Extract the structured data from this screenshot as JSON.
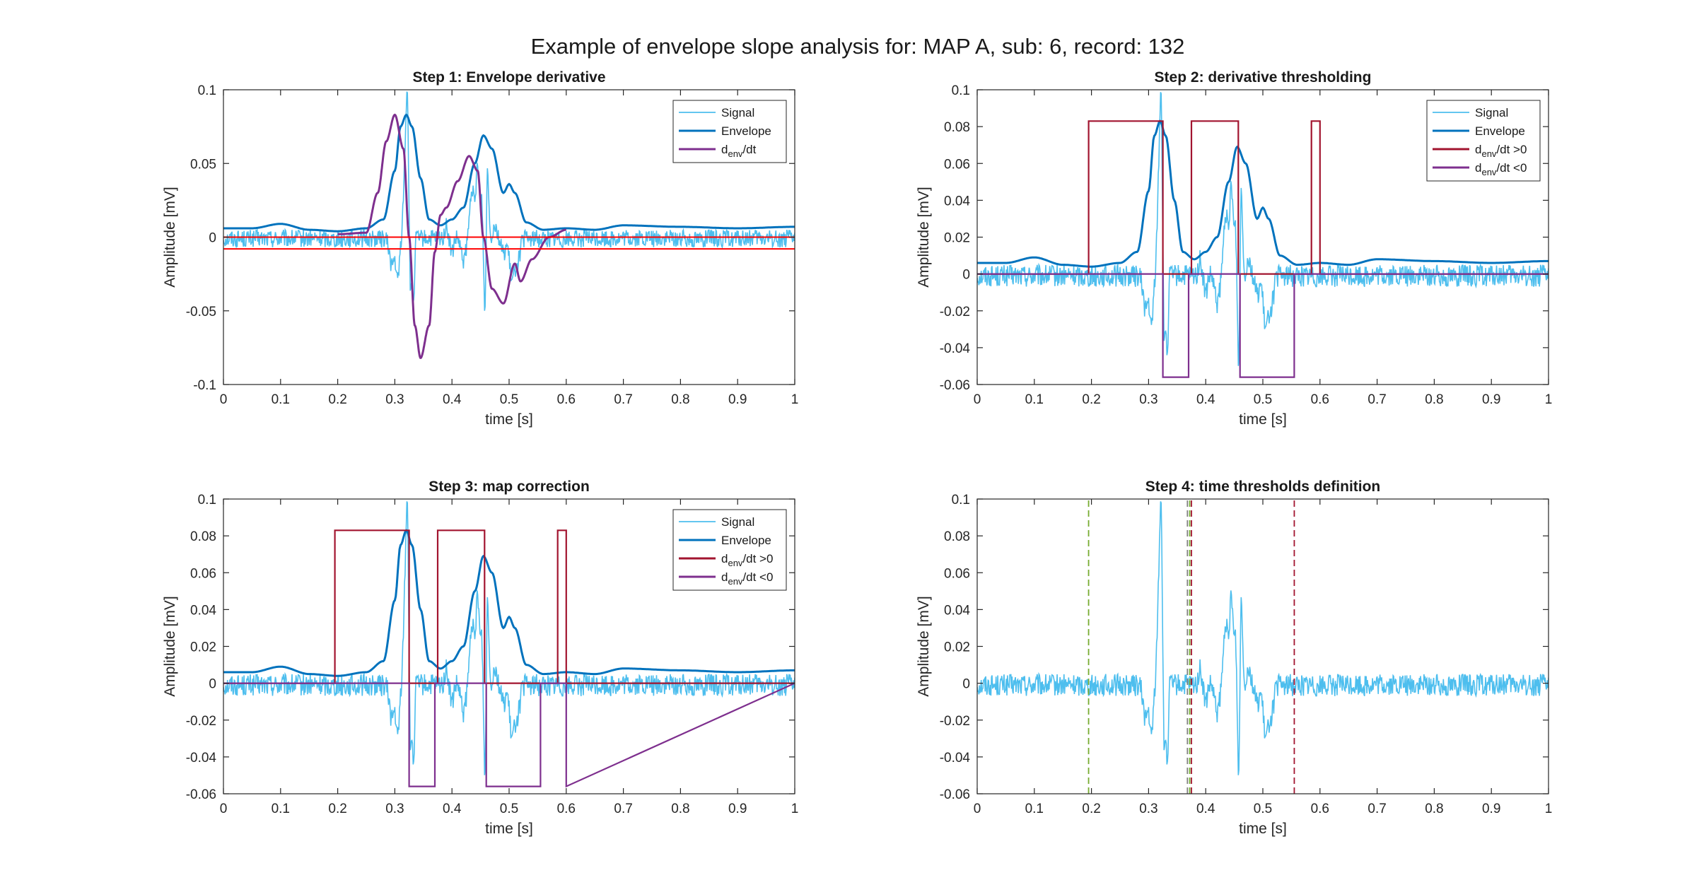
{
  "figure_title": "Example of envelope slope analysis for: MAP A, sub: 6, record: 132",
  "colors": {
    "signal": "#4DBEEE",
    "envelope": "#0072BD",
    "pos": "#A2142F",
    "neg": "#7E2F8E",
    "deriv": "#7E2F8E",
    "threshold": "#FF0000",
    "green_dash": "#77AC30",
    "red_dash": "#A2142F",
    "gray_dash": "#808080",
    "axis": "#262626"
  },
  "chart_data": [
    {
      "id": "step1",
      "type": "line",
      "title": "Step 1: Envelope derivative",
      "xlabel": "time [s]",
      "ylabel": "Amplitude [mV]",
      "xlim": [
        0,
        1
      ],
      "ylim": [
        -0.1,
        0.1
      ],
      "xticks": [
        0,
        0.1,
        0.2,
        0.3,
        0.4,
        0.5,
        0.6,
        0.7,
        0.8,
        0.9,
        1
      ],
      "xtick_labels": [
        "0",
        "0.1",
        "0.2",
        "0.3",
        "0.4",
        "0.5",
        "0.6",
        "0.7",
        "0.8",
        "0.9",
        "1"
      ],
      "yticks": [
        -0.1,
        -0.05,
        0,
        0.05,
        0.1
      ],
      "ytick_labels": [
        "-0.1",
        "-0.05",
        "0",
        "0.05",
        "0.1"
      ],
      "signal_offset": 0,
      "legend": [
        {
          "key": "signal",
          "label": "Signal",
          "sub": "",
          "rest": ""
        },
        {
          "key": "envelope",
          "label": "Envelope",
          "sub": "",
          "rest": ""
        },
        {
          "key": "deriv",
          "label": "d",
          "sub": "env",
          "rest": "/dt"
        }
      ],
      "series": [
        {
          "key": "signal",
          "kind": "signal"
        },
        {
          "key": "envelope",
          "kind": "envelope",
          "x": [
            0,
            0.05,
            0.1,
            0.15,
            0.2,
            0.25,
            0.28,
            0.3,
            0.31,
            0.32,
            0.33,
            0.345,
            0.36,
            0.38,
            0.4,
            0.42,
            0.44,
            0.455,
            0.47,
            0.49,
            0.5,
            0.51,
            0.53,
            0.56,
            0.6,
            0.65,
            0.7,
            0.8,
            0.9,
            1.0
          ],
          "y": [
            0.006,
            0.006,
            0.009,
            0.005,
            0.004,
            0.006,
            0.012,
            0.045,
            0.075,
            0.083,
            0.075,
            0.04,
            0.012,
            0.008,
            0.012,
            0.02,
            0.05,
            0.069,
            0.06,
            0.03,
            0.036,
            0.03,
            0.01,
            0.005,
            0.006,
            0.005,
            0.008,
            0.007,
            0.006,
            0.007
          ]
        },
        {
          "key": "deriv",
          "kind": "deriv",
          "x": [
            0.2,
            0.25,
            0.27,
            0.285,
            0.3,
            0.315,
            0.325,
            0.335,
            0.345,
            0.36,
            0.37,
            0.38,
            0.39,
            0.41,
            0.43,
            0.445,
            0.455,
            0.47,
            0.49,
            0.51,
            0.52,
            0.54,
            0.57,
            0.6
          ],
          "y": [
            0.002,
            0.003,
            0.03,
            0.065,
            0.083,
            0.06,
            0.0,
            -0.06,
            -0.082,
            -0.06,
            -0.01,
            0.015,
            0.02,
            0.038,
            0.055,
            0.045,
            0.0,
            -0.035,
            -0.045,
            -0.018,
            -0.03,
            -0.015,
            0.0,
            0.005
          ]
        },
        {
          "key": "threshold",
          "kind": "hline",
          "y": 0
        },
        {
          "key": "threshold",
          "kind": "hline",
          "y": -0.008
        }
      ]
    },
    {
      "id": "step2",
      "type": "line",
      "title": "Step 2: derivative thresholding",
      "xlabel": "time [s]",
      "ylabel": "Amplitude [mV]",
      "xlim": [
        0,
        1
      ],
      "ylim": [
        -0.06,
        0.1
      ],
      "xticks": [
        0,
        0.1,
        0.2,
        0.3,
        0.4,
        0.5,
        0.6,
        0.7,
        0.8,
        0.9,
        1
      ],
      "xtick_labels": [
        "0",
        "0.1",
        "0.2",
        "0.3",
        "0.4",
        "0.5",
        "0.6",
        "0.7",
        "0.8",
        "0.9",
        "1"
      ],
      "yticks": [
        -0.06,
        -0.04,
        -0.02,
        0,
        0.02,
        0.04,
        0.06,
        0.08,
        0.1
      ],
      "ytick_labels": [
        "-0.06",
        "-0.04",
        "-0.02",
        "0",
        "0.02",
        "0.04",
        "0.06",
        "0.08",
        "0.1"
      ],
      "signal_offset": 0,
      "legend": [
        {
          "key": "signal",
          "label": "Signal",
          "sub": "",
          "rest": ""
        },
        {
          "key": "envelope",
          "label": "Envelope",
          "sub": "",
          "rest": ""
        },
        {
          "key": "pos",
          "label": "d",
          "sub": "env",
          "rest": "/dt >0"
        },
        {
          "key": "neg",
          "label": "d",
          "sub": "env",
          "rest": "/dt <0"
        }
      ],
      "series": [
        {
          "key": "signal",
          "kind": "signal"
        },
        {
          "key": "envelope",
          "kind": "envelope",
          "x": [
            0,
            0.05,
            0.1,
            0.15,
            0.2,
            0.25,
            0.28,
            0.3,
            0.31,
            0.32,
            0.33,
            0.345,
            0.36,
            0.38,
            0.4,
            0.42,
            0.44,
            0.455,
            0.47,
            0.49,
            0.5,
            0.51,
            0.53,
            0.56,
            0.6,
            0.65,
            0.7,
            0.8,
            0.9,
            1.0
          ],
          "y": [
            0.006,
            0.006,
            0.009,
            0.005,
            0.004,
            0.006,
            0.012,
            0.045,
            0.075,
            0.083,
            0.075,
            0.04,
            0.012,
            0.008,
            0.012,
            0.02,
            0.05,
            0.069,
            0.06,
            0.03,
            0.036,
            0.03,
            0.01,
            0.005,
            0.006,
            0.005,
            0.008,
            0.007,
            0.006,
            0.007
          ]
        },
        {
          "key": "pos",
          "kind": "step",
          "x": [
            0,
            0.195,
            0.195,
            0.325,
            0.325,
            0.375,
            0.375,
            0.457,
            0.457,
            0.585,
            0.585,
            0.6,
            0.6,
            1.0
          ],
          "y": [
            0,
            0,
            0.083,
            0.083,
            0,
            0,
            0.083,
            0.083,
            0,
            0,
            0.083,
            0.083,
            0,
            0
          ]
        },
        {
          "key": "neg",
          "kind": "step",
          "x": [
            0,
            0.325,
            0.325,
            0.37,
            0.37,
            0.46,
            0.46,
            0.555,
            0.555,
            1.0
          ],
          "y": [
            0,
            0,
            -0.056,
            -0.056,
            0,
            0,
            -0.056,
            -0.056,
            0,
            0
          ]
        }
      ]
    },
    {
      "id": "step3",
      "type": "line",
      "title": "Step 3: map correction",
      "xlabel": "time [s]",
      "ylabel": "Amplitude [mV]",
      "xlim": [
        0,
        1
      ],
      "ylim": [
        -0.06,
        0.1
      ],
      "xticks": [
        0,
        0.1,
        0.2,
        0.3,
        0.4,
        0.5,
        0.6,
        0.7,
        0.8,
        0.9,
        1
      ],
      "xtick_labels": [
        "0",
        "0.1",
        "0.2",
        "0.3",
        "0.4",
        "0.5",
        "0.6",
        "0.7",
        "0.8",
        "0.9",
        "1"
      ],
      "yticks": [
        -0.06,
        -0.04,
        -0.02,
        0,
        0.02,
        0.04,
        0.06,
        0.08,
        0.1
      ],
      "ytick_labels": [
        "-0.06",
        "-0.04",
        "-0.02",
        "0",
        "0.02",
        "0.04",
        "0.06",
        "0.08",
        "0.1"
      ],
      "signal_offset": 0,
      "legend": [
        {
          "key": "signal",
          "label": "Signal",
          "sub": "",
          "rest": ""
        },
        {
          "key": "envelope",
          "label": "Envelope",
          "sub": "",
          "rest": ""
        },
        {
          "key": "pos",
          "label": "d",
          "sub": "env",
          "rest": "/dt >0"
        },
        {
          "key": "neg",
          "label": "d",
          "sub": "env",
          "rest": "/dt <0"
        }
      ],
      "series": [
        {
          "key": "signal",
          "kind": "signal"
        },
        {
          "key": "envelope",
          "kind": "envelope",
          "x": [
            0,
            0.05,
            0.1,
            0.15,
            0.2,
            0.25,
            0.28,
            0.3,
            0.31,
            0.32,
            0.33,
            0.345,
            0.36,
            0.38,
            0.4,
            0.42,
            0.44,
            0.455,
            0.47,
            0.49,
            0.5,
            0.51,
            0.53,
            0.56,
            0.6,
            0.65,
            0.7,
            0.8,
            0.9,
            1.0
          ],
          "y": [
            0.006,
            0.006,
            0.009,
            0.005,
            0.004,
            0.006,
            0.012,
            0.045,
            0.075,
            0.083,
            0.075,
            0.04,
            0.012,
            0.008,
            0.012,
            0.02,
            0.05,
            0.069,
            0.06,
            0.03,
            0.036,
            0.03,
            0.01,
            0.005,
            0.006,
            0.005,
            0.008,
            0.007,
            0.006,
            0.007
          ]
        },
        {
          "key": "pos",
          "kind": "step",
          "x": [
            0,
            0.195,
            0.195,
            0.325,
            0.325,
            0.375,
            0.375,
            0.457,
            0.457,
            0.585,
            0.585,
            0.6,
            0.6,
            1.0
          ],
          "y": [
            0,
            0,
            0.083,
            0.083,
            0,
            0,
            0.083,
            0.083,
            0,
            0,
            0.083,
            0.083,
            0,
            0
          ]
        },
        {
          "key": "neg",
          "kind": "step",
          "x": [
            0,
            0.325,
            0.325,
            0.37,
            0.37,
            0.46,
            0.46,
            0.555,
            0.555,
            0.6,
            0.6,
            1.0
          ],
          "y": [
            0,
            0,
            -0.056,
            -0.056,
            0,
            0,
            -0.056,
            -0.056,
            0,
            0,
            -0.056,
            0
          ]
        }
      ]
    },
    {
      "id": "step4",
      "type": "line",
      "title": "Step 4: time thresholds definition",
      "xlabel": "time [s]",
      "ylabel": "Amplitude [mV]",
      "xlim": [
        0,
        1
      ],
      "ylim": [
        -0.06,
        0.1
      ],
      "xticks": [
        0,
        0.1,
        0.2,
        0.3,
        0.4,
        0.5,
        0.6,
        0.7,
        0.8,
        0.9,
        1
      ],
      "xtick_labels": [
        "0",
        "0.1",
        "0.2",
        "0.3",
        "0.4",
        "0.5",
        "0.6",
        "0.7",
        "0.8",
        "0.9",
        "1"
      ],
      "yticks": [
        -0.06,
        -0.04,
        -0.02,
        0,
        0.02,
        0.04,
        0.06,
        0.08,
        0.1
      ],
      "ytick_labels": [
        "-0.06",
        "-0.04",
        "-0.02",
        "0",
        "0.02",
        "0.04",
        "0.06",
        "0.08",
        "0.1"
      ],
      "signal_offset": 0,
      "legend": [],
      "series": [
        {
          "key": "signal",
          "kind": "signal"
        },
        {
          "key": "green_dash",
          "kind": "vline",
          "x": 0.195
        },
        {
          "key": "green_dash",
          "kind": "vline",
          "x": 0.372
        },
        {
          "key": "gray_dash",
          "kind": "vline",
          "x": 0.368
        },
        {
          "key": "red_dash",
          "kind": "vline",
          "x": 0.375
        },
        {
          "key": "red_dash",
          "kind": "vline",
          "x": 0.555
        }
      ]
    }
  ]
}
